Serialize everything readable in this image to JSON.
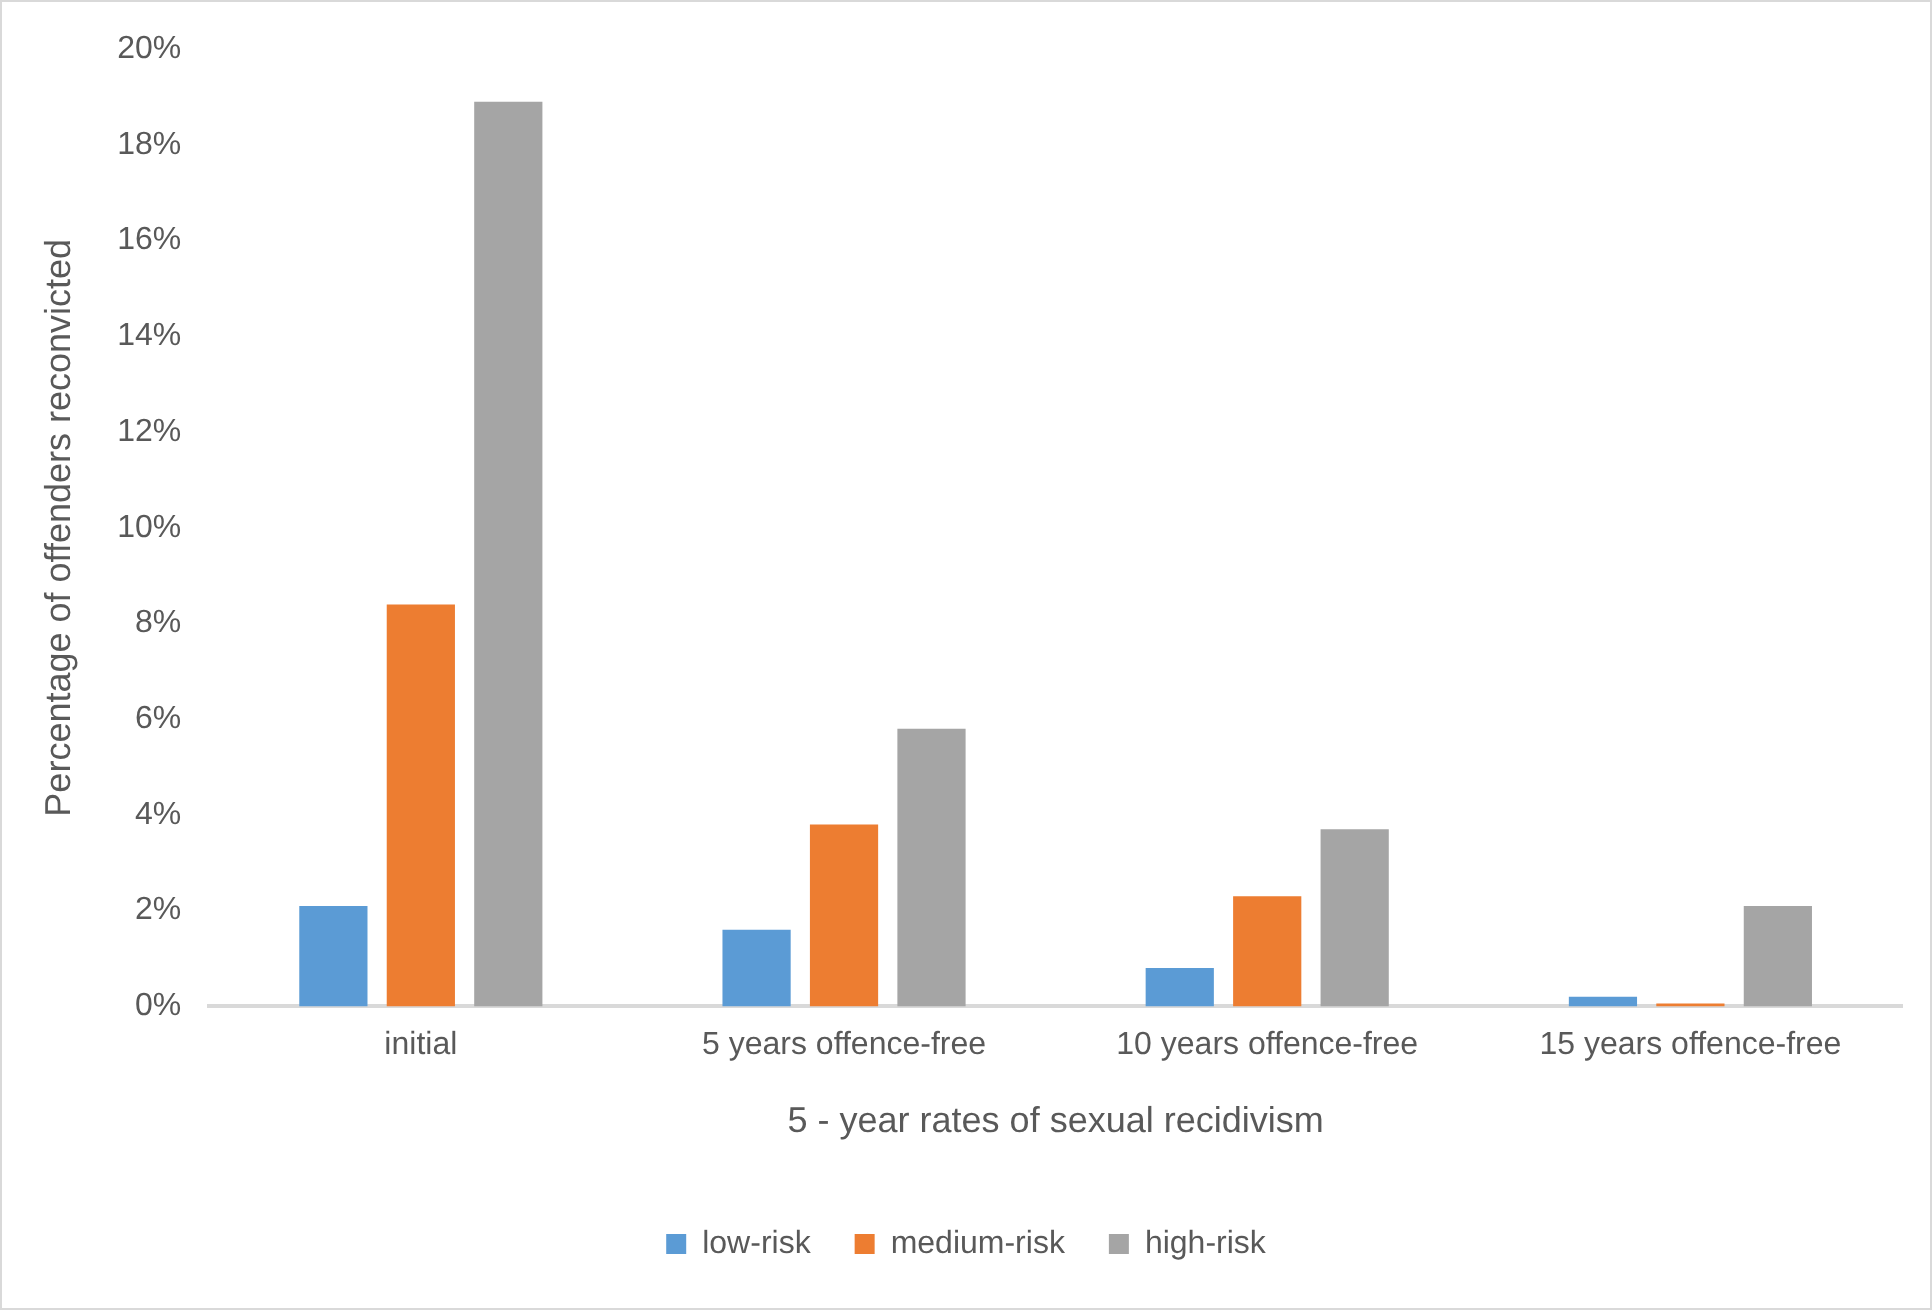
{
  "chart_data": {
    "type": "bar",
    "xlabel": "5 - year rates of sexual recidivism",
    "ylabel": "Percentage of offenders reconvicted",
    "categories": [
      "initial",
      "5 years offence-free",
      "10 years offence-free",
      "15 years offence-free"
    ],
    "series": [
      {
        "name": "low-risk",
        "color": "#5b9bd5",
        "values": [
          2.1,
          1.6,
          0.8,
          0.2
        ]
      },
      {
        "name": "medium-risk",
        "color": "#ed7d31",
        "values": [
          8.4,
          3.8,
          2.3,
          0.06
        ]
      },
      {
        "name": "high-risk",
        "color": "#a5a5a5",
        "values": [
          18.9,
          5.8,
          3.7,
          2.1
        ]
      }
    ],
    "ylim": [
      0,
      20
    ],
    "yticks": [
      {
        "value": 0,
        "label": "0%"
      },
      {
        "value": 2,
        "label": "2%"
      },
      {
        "value": 4,
        "label": "4%"
      },
      {
        "value": 6,
        "label": "6%"
      },
      {
        "value": 8,
        "label": "8%"
      },
      {
        "value": 10,
        "label": "10%"
      },
      {
        "value": 12,
        "label": "12%"
      },
      {
        "value": 14,
        "label": "14%"
      },
      {
        "value": 16,
        "label": "16%"
      },
      {
        "value": 18,
        "label": "18%"
      },
      {
        "value": 20,
        "label": "20%"
      }
    ],
    "grid": false,
    "legend": "bottom"
  }
}
